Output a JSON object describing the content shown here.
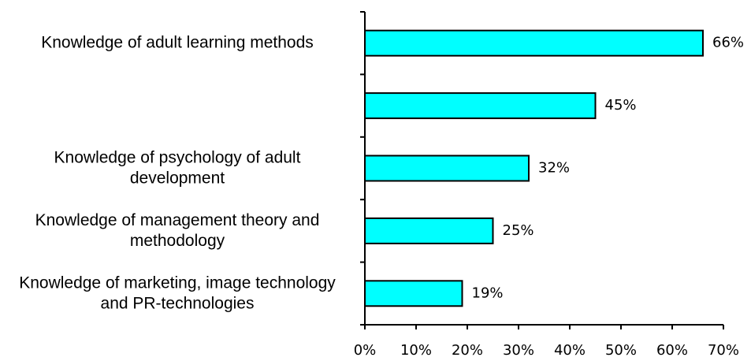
{
  "chart_data": {
    "type": "bar",
    "orientation": "horizontal",
    "categories": [
      "Knowledge of adult learning methods",
      null,
      "Knowledge of psychology of adult development",
      "Knowledge of management theory and methodology",
      "Knowledge of marketing, image technology and PR-technologies"
    ],
    "values": [
      66,
      45,
      32,
      25,
      19
    ],
    "value_labels": [
      "66%",
      "45%",
      "32%",
      "25%",
      "19%"
    ],
    "color": "#00ffff",
    "xlim": [
      0,
      70
    ],
    "xticks": [
      {
        "value": 0,
        "label": "0%"
      },
      {
        "value": 10,
        "label": "10%"
      },
      {
        "value": 20,
        "label": "20%"
      },
      {
        "value": 30,
        "label": "30%"
      },
      {
        "value": 40,
        "label": "40%"
      },
      {
        "value": 50,
        "label": "50%"
      },
      {
        "value": 60,
        "label": "60%"
      },
      {
        "value": 70,
        "label": "70%"
      }
    ],
    "grid": false
  }
}
